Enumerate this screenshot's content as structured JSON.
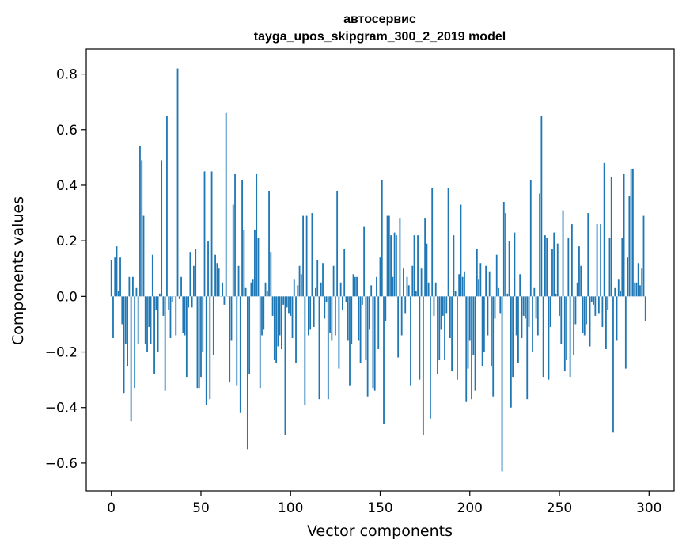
{
  "chart_data": {
    "type": "bar",
    "title": "автосервис",
    "subtitle": "tayga_upos_skipgram_300_2_2019 model",
    "xlabel": "Vector components",
    "ylabel": "Components values",
    "xlim": [
      -14,
      314
    ],
    "ylim": [
      -0.7,
      0.89
    ],
    "xticks": [
      0,
      50,
      100,
      150,
      200,
      250,
      300
    ],
    "yticks": [
      -0.6,
      -0.4,
      -0.2,
      0.0,
      0.2,
      0.4,
      0.6,
      0.8
    ],
    "xtick_labels": [
      "0",
      "50",
      "100",
      "150",
      "200",
      "250",
      "300"
    ],
    "ytick_labels": [
      "−0.6",
      "−0.4",
      "−0.2",
      "0.0",
      "0.2",
      "0.4",
      "0.6",
      "0.8"
    ],
    "bar_color": "#1f77b4",
    "grid": false,
    "values": [
      0.13,
      -0.15,
      0.14,
      0.18,
      0.02,
      0.14,
      -0.1,
      -0.35,
      -0.17,
      -0.25,
      0.07,
      -0.45,
      0.07,
      -0.33,
      0.03,
      -0.17,
      0.54,
      0.49,
      0.29,
      -0.17,
      -0.2,
      -0.11,
      -0.17,
      0.15,
      -0.28,
      -0.05,
      -0.2,
      0.01,
      0.49,
      -0.07,
      -0.34,
      0.65,
      -0.05,
      -0.15,
      -0.02,
      0.0,
      -0.14,
      0.82,
      -0.01,
      0.07,
      -0.13,
      -0.14,
      -0.29,
      -0.04,
      0.16,
      -0.04,
      0.11,
      0.17,
      -0.33,
      -0.33,
      -0.29,
      -0.2,
      0.45,
      -0.39,
      0.2,
      -0.37,
      0.45,
      -0.21,
      0.15,
      0.12,
      0.1,
      0.0,
      0.05,
      -0.03,
      0.66,
      0.0,
      -0.31,
      -0.16,
      0.33,
      0.44,
      -0.32,
      0.11,
      -0.42,
      0.42,
      0.24,
      0.03,
      -0.55,
      -0.28,
      0.05,
      0.06,
      0.24,
      0.44,
      0.21,
      -0.33,
      -0.14,
      -0.12,
      0.05,
      0.02,
      0.38,
      0.16,
      -0.07,
      -0.23,
      -0.24,
      -0.18,
      -0.14,
      -0.19,
      -0.03,
      -0.5,
      -0.04,
      -0.06,
      -0.07,
      -0.15,
      0.06,
      -0.24,
      0.04,
      0.11,
      0.08,
      0.29,
      -0.39,
      0.29,
      -0.14,
      -0.12,
      0.3,
      -0.11,
      0.03,
      0.13,
      -0.37,
      0.05,
      0.12,
      -0.08,
      -0.02,
      -0.37,
      -0.13,
      -0.16,
      0.11,
      -0.14,
      0.38,
      -0.26,
      0.05,
      -0.05,
      0.17,
      -0.02,
      -0.16,
      -0.32,
      -0.17,
      0.08,
      0.07,
      0.07,
      -0.16,
      -0.24,
      -0.03,
      0.25,
      -0.23,
      -0.36,
      -0.12,
      0.04,
      -0.33,
      -0.34,
      0.07,
      -0.19,
      0.14,
      0.42,
      -0.46,
      -0.09,
      0.29,
      0.29,
      0.22,
      0.07,
      0.23,
      0.22,
      -0.22,
      0.28,
      -0.14,
      0.1,
      -0.06,
      0.07,
      0.04,
      -0.32,
      0.11,
      0.22,
      0.02,
      0.22,
      -0.3,
      0.1,
      -0.5,
      0.28,
      0.19,
      0.05,
      -0.44,
      0.39,
      -0.07,
      0.05,
      -0.28,
      -0.23,
      -0.12,
      -0.07,
      -0.23,
      -0.06,
      0.39,
      -0.15,
      -0.27,
      0.22,
      0.02,
      -0.3,
      0.08,
      0.33,
      0.07,
      0.09,
      -0.38,
      -0.26,
      -0.16,
      -0.37,
      -0.21,
      -0.34,
      0.17,
      0.06,
      0.12,
      -0.25,
      -0.2,
      0.11,
      -0.14,
      0.09,
      -0.25,
      -0.36,
      -0.08,
      0.15,
      0.03,
      -0.06,
      -0.63,
      0.34,
      0.3,
      0.01,
      0.2,
      -0.4,
      -0.29,
      0.23,
      -0.14,
      -0.24,
      0.08,
      -0.15,
      -0.07,
      -0.08,
      -0.37,
      -0.11,
      0.42,
      -0.2,
      0.03,
      -0.08,
      -0.14,
      0.37,
      0.65,
      -0.29,
      0.22,
      0.21,
      -0.3,
      -0.11,
      0.17,
      0.23,
      0.01,
      0.19,
      -0.07,
      -0.17,
      0.31,
      -0.27,
      -0.23,
      0.21,
      -0.29,
      0.26,
      -0.21,
      -0.1,
      0.05,
      0.18,
      0.11,
      -0.13,
      -0.14,
      -0.1,
      0.3,
      -0.18,
      -0.02,
      -0.03,
      -0.07,
      0.26,
      -0.06,
      0.26,
      -0.11,
      0.48,
      -0.19,
      -0.05,
      0.21,
      0.43,
      -0.49,
      0.03,
      -0.16,
      0.06,
      0.02,
      0.21,
      0.44,
      -0.26,
      0.14,
      0.36,
      0.46,
      0.46,
      0.05,
      0.05,
      0.12,
      0.04,
      0.1,
      0.29,
      -0.09
    ]
  }
}
